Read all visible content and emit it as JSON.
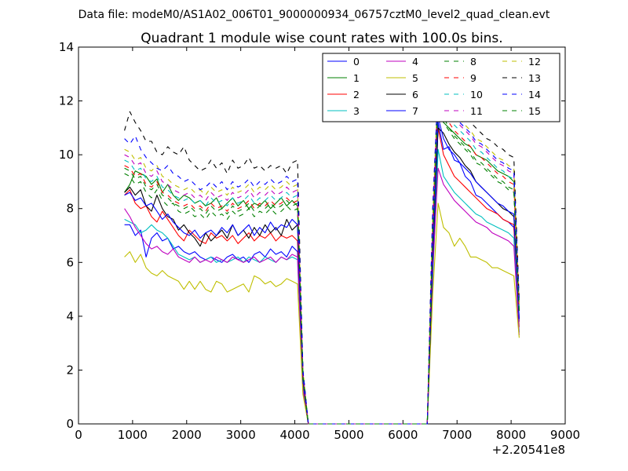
{
  "figure": {
    "suptitle": "Data file: modeM0/AS1A02_006T01_9000000934_06757cztM0_level2_quad_clean.evt",
    "title": "Quadrant 1 module wise count rates with 100.0s bins.",
    "x_offset_label": "+2.20541e8"
  },
  "chart_data": {
    "type": "line",
    "title": "Quadrant 1 module wise count rates with 100.0s bins.",
    "xlabel": "",
    "ylabel": "",
    "xlim": [
      0,
      9000
    ],
    "ylim": [
      0,
      14
    ],
    "xticks": [
      0,
      1000,
      2000,
      3000,
      4000,
      5000,
      6000,
      7000,
      8000,
      9000
    ],
    "yticks": [
      0,
      2,
      4,
      6,
      8,
      10,
      12,
      14
    ],
    "x_offset": "+2.20541e8",
    "legend_position": "top-right",
    "legend_columns": 4,
    "x": [
      850,
      950,
      1050,
      1150,
      1250,
      1350,
      1450,
      1550,
      1650,
      1750,
      1850,
      1950,
      2050,
      2150,
      2250,
      2350,
      2450,
      2550,
      2650,
      2750,
      2850,
      2950,
      3050,
      3150,
      3250,
      3350,
      3450,
      3550,
      3650,
      3750,
      3850,
      3950,
      4050,
      4150,
      4250,
      6450,
      6550,
      6650,
      6750,
      6850,
      6950,
      7050,
      7150,
      7250,
      7350,
      7450,
      7550,
      7650,
      7750,
      7850,
      7950,
      8050,
      8150
    ],
    "series": [
      {
        "name": "0",
        "color": "#0000ff",
        "dash": "solid",
        "values": [
          7.4,
          7.4,
          7.0,
          7.2,
          6.2,
          6.9,
          7.1,
          6.8,
          6.9,
          6.5,
          6.6,
          6.4,
          6.3,
          6.4,
          6.2,
          6.1,
          6.2,
          6.1,
          6.0,
          6.2,
          6.3,
          6.1,
          6.2,
          6.0,
          6.3,
          6.4,
          6.2,
          6.5,
          6.3,
          6.4,
          6.2,
          6.6,
          6.4,
          1.2,
          0,
          0,
          5.6,
          11.2,
          10.2,
          10.3,
          9.8,
          9.7,
          9.2,
          9.0,
          8.5,
          8.4,
          8.2,
          8.0,
          7.8,
          7.6,
          7.5,
          7.3,
          3.8
        ]
      },
      {
        "name": "1",
        "color": "#008000",
        "dash": "solid",
        "values": [
          8.6,
          8.9,
          9.4,
          9.3,
          9.2,
          8.9,
          9.1,
          8.6,
          8.9,
          8.5,
          8.3,
          8.5,
          8.4,
          8.2,
          8.3,
          8.1,
          8.2,
          8.4,
          8.0,
          8.2,
          8.4,
          8.1,
          8.3,
          8.0,
          8.2,
          8.1,
          8.3,
          8.0,
          8.2,
          8.4,
          8.1,
          8.3,
          8.1,
          1.8,
          0,
          0,
          6.6,
          11.6,
          11.2,
          11.0,
          10.8,
          10.6,
          10.4,
          10.3,
          10.0,
          9.9,
          9.8,
          9.6,
          9.4,
          9.3,
          9.2,
          9.0,
          4.2
        ]
      },
      {
        "name": "2",
        "color": "#ff0000",
        "dash": "solid",
        "values": [
          8.5,
          8.7,
          8.2,
          8.0,
          8.1,
          7.7,
          7.5,
          7.9,
          7.6,
          7.3,
          7.0,
          6.8,
          7.2,
          7.0,
          6.8,
          6.7,
          7.1,
          6.9,
          7.0,
          6.8,
          7.0,
          6.7,
          6.9,
          7.1,
          6.8,
          7.0,
          6.9,
          7.1,
          6.8,
          7.0,
          6.9,
          7.0,
          6.8,
          1.5,
          0,
          0,
          6.2,
          11.0,
          10.0,
          9.6,
          9.2,
          9.0,
          8.8,
          8.6,
          8.4,
          8.2,
          8.0,
          7.9,
          7.8,
          7.6,
          7.5,
          7.4,
          3.6
        ]
      },
      {
        "name": "3",
        "color": "#00bfbf",
        "dash": "solid",
        "values": [
          7.6,
          7.5,
          7.4,
          7.1,
          7.2,
          7.4,
          7.2,
          7.1,
          6.9,
          6.6,
          6.3,
          6.2,
          6.1,
          6.2,
          6.0,
          6.1,
          6.2,
          6.0,
          6.1,
          6.0,
          6.1,
          6.2,
          6.0,
          6.2,
          6.1,
          6.0,
          6.2,
          6.1,
          6.0,
          6.2,
          6.1,
          6.2,
          6.1,
          1.3,
          0,
          0,
          5.4,
          10.2,
          9.2,
          8.9,
          8.6,
          8.4,
          8.2,
          8.0,
          7.8,
          7.7,
          7.5,
          7.4,
          7.3,
          7.2,
          7.1,
          6.9,
          3.4
        ]
      },
      {
        "name": "4",
        "color": "#bf00bf",
        "dash": "solid",
        "values": [
          8.0,
          7.7,
          7.3,
          7.0,
          6.7,
          6.5,
          6.6,
          6.4,
          6.3,
          6.5,
          6.2,
          6.1,
          6.0,
          6.2,
          6.0,
          6.1,
          6.0,
          6.2,
          6.1,
          6.0,
          6.2,
          6.1,
          6.0,
          6.1,
          6.2,
          6.0,
          6.1,
          6.2,
          6.0,
          6.2,
          6.1,
          6.3,
          6.2,
          1.3,
          0,
          0,
          5.7,
          9.5,
          8.9,
          8.6,
          8.3,
          8.1,
          7.9,
          7.7,
          7.5,
          7.4,
          7.3,
          7.1,
          7.0,
          6.9,
          6.8,
          6.6,
          3.3
        ]
      },
      {
        "name": "5",
        "color": "#bfbf00",
        "dash": "solid",
        "values": [
          6.2,
          6.4,
          6.0,
          6.3,
          5.8,
          5.6,
          5.5,
          5.7,
          5.5,
          5.4,
          5.3,
          5.0,
          5.3,
          5.0,
          5.3,
          5.0,
          4.9,
          5.3,
          5.2,
          4.9,
          5.0,
          5.1,
          5.2,
          4.9,
          5.5,
          5.4,
          5.2,
          5.3,
          5.1,
          5.2,
          5.4,
          5.3,
          5.2,
          1.1,
          0,
          0,
          4.8,
          8.2,
          7.3,
          7.1,
          6.6,
          6.9,
          6.6,
          6.2,
          6.2,
          6.1,
          6.0,
          5.8,
          5.8,
          5.7,
          5.6,
          5.5,
          3.2
        ]
      },
      {
        "name": "6",
        "color": "#000000",
        "dash": "solid",
        "values": [
          8.6,
          8.8,
          8.5,
          8.7,
          8.1,
          7.9,
          8.5,
          8.0,
          7.7,
          7.6,
          7.2,
          7.4,
          7.1,
          6.9,
          6.6,
          7.1,
          6.8,
          7.0,
          7.2,
          6.9,
          7.4,
          7.0,
          7.2,
          6.9,
          7.3,
          7.0,
          7.4,
          7.1,
          7.3,
          7.0,
          7.6,
          7.2,
          7.4,
          1.6,
          0,
          0,
          6.1,
          11.0,
          10.8,
          10.4,
          10.1,
          9.9,
          9.6,
          9.4,
          9.0,
          8.8,
          8.6,
          8.4,
          8.2,
          8.0,
          7.9,
          7.7,
          3.9
        ]
      },
      {
        "name": "7",
        "color": "#0000ff",
        "dash": "solid",
        "values": [
          8.5,
          8.6,
          8.3,
          8.4,
          8.1,
          8.2,
          7.9,
          7.6,
          7.8,
          7.5,
          7.3,
          7.1,
          7.0,
          7.2,
          6.9,
          7.1,
          7.2,
          7.0,
          7.3,
          7.1,
          7.4,
          7.0,
          7.2,
          7.4,
          7.0,
          7.3,
          7.1,
          7.5,
          7.2,
          7.4,
          7.3,
          7.6,
          7.4,
          1.6,
          0,
          0,
          6.3,
          11.4,
          10.6,
          10.2,
          10.0,
          9.7,
          9.5,
          9.3,
          9.0,
          8.8,
          8.6,
          8.4,
          8.2,
          8.1,
          7.9,
          7.8,
          3.9
        ]
      },
      {
        "name": "8",
        "color": "#008000",
        "dash": "dashed",
        "values": [
          9.3,
          9.2,
          8.9,
          9.0,
          8.6,
          8.4,
          8.7,
          8.3,
          8.1,
          8.2,
          7.9,
          7.8,
          7.9,
          7.7,
          7.8,
          7.6,
          7.9,
          7.7,
          7.8,
          7.6,
          7.9,
          7.7,
          7.8,
          8.0,
          7.7,
          7.9,
          7.8,
          8.0,
          7.8,
          7.9,
          8.1,
          7.9,
          8.0,
          1.7,
          0,
          0,
          6.9,
          11.8,
          11.2,
          10.9,
          10.6,
          10.4,
          10.2,
          10.0,
          9.7,
          9.6,
          9.4,
          9.2,
          9.0,
          8.9,
          8.7,
          8.6,
          4.1
        ]
      },
      {
        "name": "9",
        "color": "#ff0000",
        "dash": "dashed",
        "values": [
          9.6,
          9.5,
          9.2,
          9.3,
          8.9,
          8.8,
          9.0,
          8.6,
          8.5,
          8.3,
          8.2,
          8.1,
          8.2,
          8.0,
          8.1,
          7.9,
          8.2,
          8.0,
          8.1,
          7.9,
          8.2,
          8.0,
          8.1,
          8.3,
          8.0,
          8.2,
          8.1,
          8.3,
          8.1,
          8.2,
          8.4,
          8.2,
          8.3,
          1.8,
          0,
          0,
          7.1,
          12.2,
          11.6,
          11.2,
          10.9,
          10.7,
          10.5,
          10.3,
          10.0,
          9.9,
          9.7,
          9.5,
          9.3,
          9.2,
          9.0,
          8.9,
          4.2
        ]
      },
      {
        "name": "10",
        "color": "#00bfbf",
        "dash": "dashed",
        "values": [
          9.8,
          9.7,
          9.4,
          9.5,
          9.1,
          9.0,
          9.2,
          8.8,
          8.7,
          8.5,
          8.4,
          8.3,
          8.4,
          8.2,
          8.3,
          8.1,
          8.4,
          8.2,
          8.3,
          8.1,
          8.4,
          8.2,
          8.3,
          8.5,
          8.2,
          8.4,
          8.3,
          8.5,
          8.3,
          8.4,
          8.6,
          8.4,
          8.5,
          1.9,
          0,
          0,
          7.3,
          12.4,
          11.8,
          11.4,
          11.1,
          10.9,
          10.7,
          10.5,
          10.2,
          10.1,
          9.9,
          9.7,
          9.5,
          9.4,
          9.2,
          9.1,
          4.3
        ]
      },
      {
        "name": "11",
        "color": "#bf00bf",
        "dash": "dashed",
        "values": [
          10.0,
          9.9,
          9.6,
          9.7,
          9.3,
          9.2,
          9.4,
          9.0,
          8.9,
          8.7,
          8.6,
          8.5,
          8.6,
          8.4,
          8.5,
          8.3,
          8.6,
          8.4,
          8.5,
          8.3,
          8.6,
          8.4,
          8.5,
          8.7,
          8.4,
          8.6,
          8.5,
          8.7,
          8.5,
          8.6,
          8.8,
          8.6,
          8.7,
          1.9,
          0,
          0,
          7.5,
          12.6,
          12.0,
          11.6,
          11.3,
          11.1,
          10.9,
          10.7,
          10.4,
          10.3,
          10.1,
          9.9,
          9.7,
          9.6,
          9.4,
          9.3,
          4.4
        ]
      },
      {
        "name": "12",
        "color": "#bfbf00",
        "dash": "dashed",
        "values": [
          10.2,
          10.1,
          9.8,
          9.9,
          9.5,
          9.4,
          9.6,
          9.2,
          9.1,
          8.9,
          8.8,
          8.7,
          8.8,
          8.6,
          8.7,
          8.5,
          8.8,
          8.6,
          8.7,
          8.5,
          8.8,
          8.6,
          8.7,
          8.9,
          8.6,
          8.8,
          8.7,
          8.9,
          8.7,
          8.8,
          9.0,
          8.8,
          8.9,
          2.0,
          0,
          0,
          7.7,
          12.8,
          12.2,
          11.8,
          11.5,
          11.3,
          11.1,
          10.9,
          10.6,
          10.5,
          10.3,
          10.1,
          9.9,
          9.8,
          9.6,
          9.5,
          4.5
        ]
      },
      {
        "name": "13",
        "color": "#000000",
        "dash": "dashed",
        "values": [
          10.9,
          11.6,
          11.2,
          10.9,
          10.5,
          10.5,
          10.1,
          10.0,
          10.3,
          10.1,
          10.0,
          10.3,
          9.8,
          9.6,
          9.4,
          9.5,
          9.8,
          9.5,
          9.7,
          9.3,
          9.8,
          9.5,
          9.6,
          9.9,
          9.5,
          9.6,
          9.4,
          9.6,
          9.5,
          9.6,
          9.3,
          9.7,
          9.8,
          2.0,
          0,
          0,
          8.0,
          12.6,
          12.4,
          12.0,
          11.8,
          11.6,
          11.4,
          11.2,
          11.0,
          10.8,
          10.6,
          10.5,
          10.3,
          10.2,
          10.0,
          9.9,
          4.6
        ]
      },
      {
        "name": "14",
        "color": "#0000ff",
        "dash": "dashed",
        "values": [
          10.6,
          10.4,
          10.7,
          10.2,
          9.9,
          9.7,
          9.5,
          9.4,
          9.6,
          9.3,
          9.2,
          9.0,
          9.1,
          8.9,
          8.7,
          8.8,
          9.0,
          8.8,
          9.0,
          8.7,
          9.0,
          8.8,
          8.9,
          9.1,
          8.8,
          9.0,
          8.9,
          9.1,
          8.9,
          9.0,
          9.2,
          9.0,
          9.1,
          2.0,
          0,
          0,
          7.9,
          12.6,
          12.1,
          11.7,
          11.4,
          11.2,
          11.0,
          10.8,
          10.5,
          10.4,
          10.2,
          10.0,
          9.8,
          9.7,
          9.5,
          9.4,
          4.5
        ]
      },
      {
        "name": "15",
        "color": "#008000",
        "dash": "dashed",
        "values": [
          9.5,
          9.4,
          9.1,
          9.2,
          8.8,
          8.7,
          8.9,
          8.5,
          8.4,
          8.2,
          8.1,
          8.0,
          8.1,
          7.9,
          8.0,
          7.8,
          8.1,
          7.9,
          8.0,
          7.8,
          8.1,
          7.9,
          8.0,
          8.2,
          7.9,
          8.1,
          8.0,
          8.2,
          8.0,
          8.1,
          8.3,
          8.1,
          8.2,
          1.8,
          0,
          0,
          7.0,
          12.0,
          11.4,
          11.0,
          10.7,
          10.5,
          10.3,
          10.1,
          9.8,
          9.7,
          9.5,
          9.3,
          9.1,
          9.0,
          8.8,
          8.7,
          4.1
        ]
      }
    ]
  }
}
